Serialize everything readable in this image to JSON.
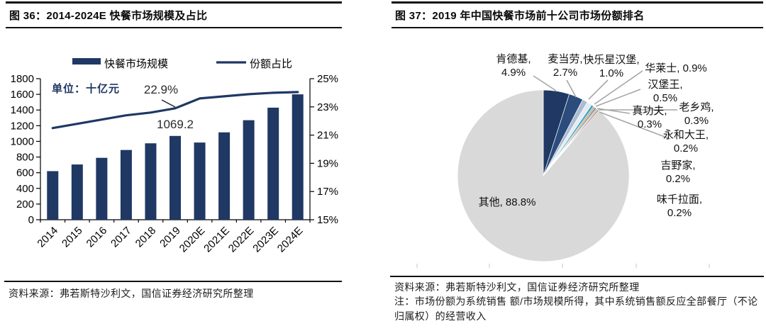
{
  "left_panel": {
    "title": "图 36：2014-2024E 快餐市场规模及占比",
    "source": "资料来源：弗若斯特沙利文，国信证券经济研究所整理"
  },
  "right_panel": {
    "title": "图 37：2019 年中国快餐市场前十公司市场份额排名",
    "source": "资料来源：弗若斯特沙利文，国信证券经济研究所整理",
    "note": "注：市场份额为系统销售 额/市场规模所得，其中系统销售额反应全部餐厅（不论归属权）的经营收入"
  },
  "colors": {
    "accent_navy": "#1F3864",
    "axis_black": "#000000",
    "leader_gray": "#A6A6A6",
    "other_gray": "#D9D9D9"
  },
  "chart_data": [
    {
      "type": "bar+line",
      "title": "2014-2024E 快餐市场规模及占比",
      "unit": "单位：十亿元",
      "categories": [
        "2014",
        "2015",
        "2016",
        "2017",
        "2018",
        "2019",
        "2020E",
        "2021E",
        "2022E",
        "2023E",
        "2024E"
      ],
      "series": [
        {
          "name": "快餐市场规模",
          "type": "bar",
          "axis": "left",
          "color": "#1F3864",
          "values": [
            620,
            705,
            790,
            890,
            975,
            1069.2,
            985,
            1115,
            1270,
            1430,
            1600
          ]
        },
        {
          "name": "份额占比",
          "type": "line",
          "axis": "right",
          "color": "#1F3864",
          "values": [
            21.5,
            21.8,
            22.1,
            22.4,
            22.6,
            22.9,
            23.6,
            23.75,
            23.9,
            24.0,
            24.05
          ]
        }
      ],
      "left_axis": {
        "min": 0,
        "max": 1800,
        "step": 200
      },
      "right_axis": {
        "min": 15,
        "max": 25,
        "step": 2,
        "suffix": "%"
      },
      "grid": false,
      "legend_position": "top",
      "annotations": [
        {
          "text": "22.9%",
          "target": "份额占比 2019"
        },
        {
          "text": "1069.2",
          "target": "快餐市场规模 2019"
        }
      ]
    },
    {
      "type": "pie",
      "title": "2019 年中国快餐市场前十公司市场份额排名",
      "slices": [
        {
          "label": "肯德基",
          "value": 4.9,
          "color": "#1F3864"
        },
        {
          "label": "麦当劳",
          "value": 2.7,
          "color": "#2B4C7C"
        },
        {
          "label": "快乐星汉堡",
          "value": 1.0,
          "color": "#A9BCD1"
        },
        {
          "label": "华莱士",
          "value": 0.9,
          "color": "#E6EAF0"
        },
        {
          "label": "汉堡王",
          "value": 0.5,
          "color": "#3FA9C8"
        },
        {
          "label": "真功夫",
          "value": 0.3,
          "color": "#C9A05A"
        },
        {
          "label": "老乡鸡",
          "value": 0.3,
          "color": "#4A6FA5"
        },
        {
          "label": "永和大王",
          "value": 0.2,
          "color": "#D97C2B"
        },
        {
          "label": "吉野家",
          "value": 0.2,
          "color": "#969696"
        },
        {
          "label": "味千拉面",
          "value": 0.2,
          "color": "#6E4435"
        },
        {
          "label": "其他",
          "value": 88.8,
          "color": "#D9D9D9"
        }
      ]
    }
  ]
}
